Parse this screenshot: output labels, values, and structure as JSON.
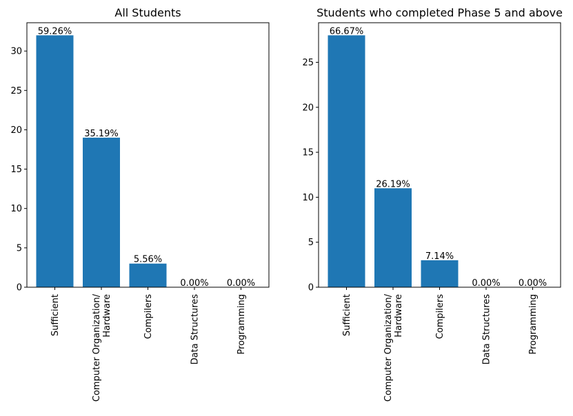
{
  "chart_data": [
    {
      "type": "bar",
      "title": "All Students",
      "categories": [
        "Sufficient",
        "Computer Organization/\nHardware",
        "Compilers",
        "Data Structures",
        "Programming"
      ],
      "values": [
        32,
        19,
        3,
        0,
        0
      ],
      "data_labels": [
        "59.26%",
        "35.19%",
        "5.56%",
        "0.00%",
        "0.00%"
      ],
      "yticks": [
        0,
        5,
        10,
        15,
        20,
        25,
        30
      ],
      "ylim": [
        0,
        33.6
      ],
      "xlabel": "",
      "ylabel": "",
      "bar_color": "#1f77b4",
      "grid": false,
      "legend": "none"
    },
    {
      "type": "bar",
      "title": "Students who completed Phase 5 and above",
      "categories": [
        "Sufficient",
        "Computer Organization/\nHardware",
        "Compilers",
        "Data Structures",
        "Programming"
      ],
      "values": [
        28,
        11,
        3,
        0,
        0
      ],
      "data_labels": [
        "66.67%",
        "26.19%",
        "7.14%",
        "0.00%",
        "0.00%"
      ],
      "yticks": [
        0,
        5,
        10,
        15,
        20,
        25
      ],
      "ylim": [
        0,
        29.4
      ],
      "xlabel": "",
      "ylabel": "",
      "bar_color": "#1f77b4",
      "grid": false,
      "legend": "none"
    }
  ]
}
